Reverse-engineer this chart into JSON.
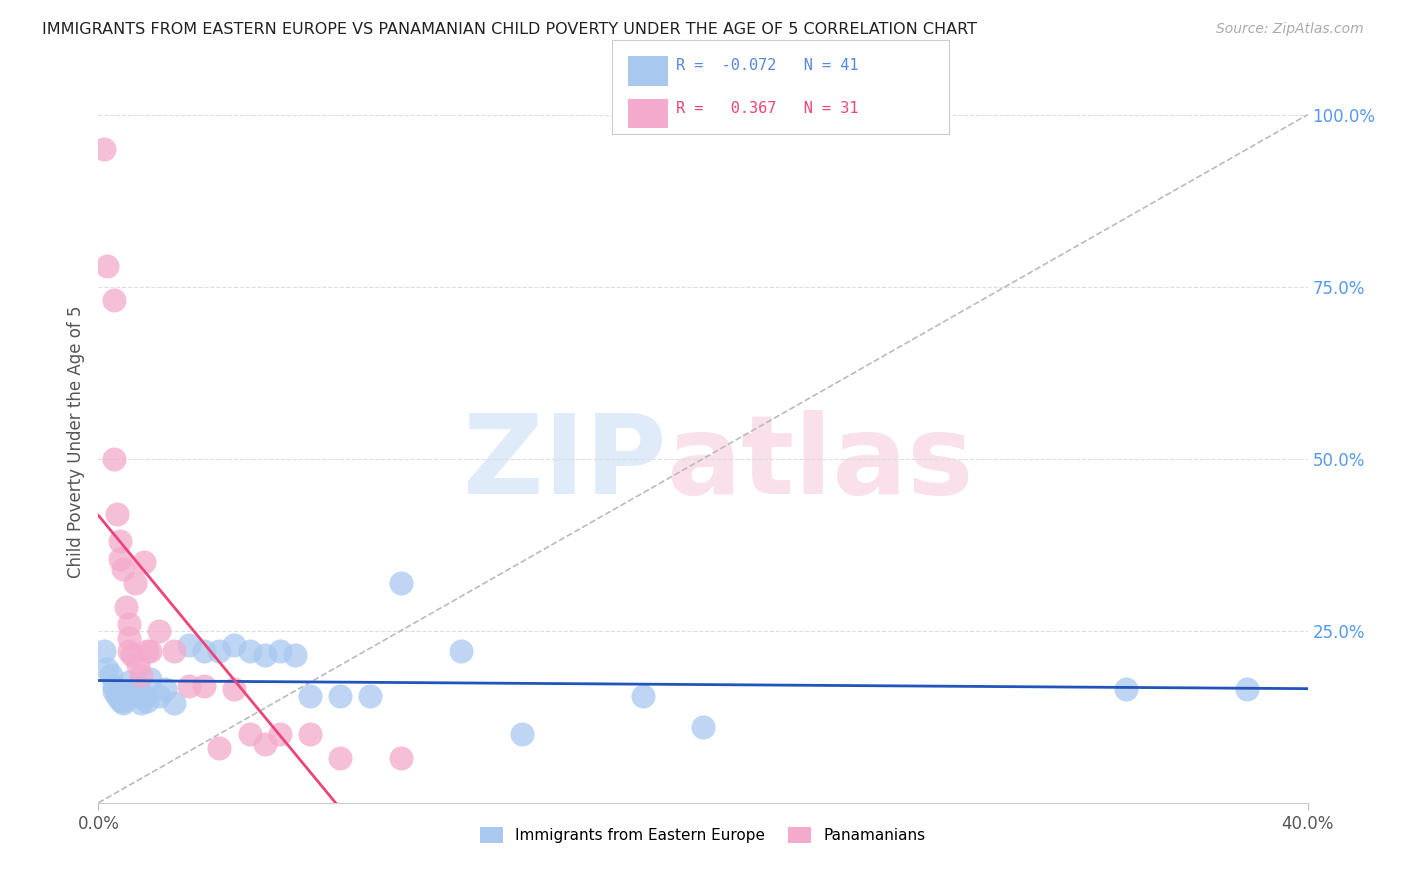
{
  "title": "IMMIGRANTS FROM EASTERN EUROPE VS PANAMANIAN CHILD POVERTY UNDER THE AGE OF 5 CORRELATION CHART",
  "source": "Source: ZipAtlas.com",
  "ylabel": "Child Poverty Under the Age of 5",
  "legend_label1": "Immigrants from Eastern Europe",
  "legend_label2": "Panamanians",
  "R1": -0.072,
  "N1": 41,
  "R2": 0.367,
  "N2": 31,
  "background_color": "#ffffff",
  "blue_color": "#A8C8F0",
  "pink_color": "#F4AACC",
  "blue_line_color": "#2255BB",
  "pink_line_color": "#EE4477",
  "grid_color": "#dddddd",
  "title_color": "#222222",
  "blue_scatter": [
    [
      0.2,
      0.22
    ],
    [
      0.3,
      0.195
    ],
    [
      0.4,
      0.185
    ],
    [
      0.5,
      0.17
    ],
    [
      0.5,
      0.162
    ],
    [
      0.6,
      0.155
    ],
    [
      0.7,
      0.155
    ],
    [
      0.7,
      0.15
    ],
    [
      0.8,
      0.148
    ],
    [
      0.8,
      0.145
    ],
    [
      0.9,
      0.155
    ],
    [
      1.0,
      0.16
    ],
    [
      1.0,
      0.175
    ],
    [
      1.1,
      0.155
    ],
    [
      1.2,
      0.155
    ],
    [
      1.3,
      0.17
    ],
    [
      1.4,
      0.145
    ],
    [
      1.5,
      0.155
    ],
    [
      1.6,
      0.148
    ],
    [
      1.7,
      0.18
    ],
    [
      2.0,
      0.155
    ],
    [
      2.2,
      0.165
    ],
    [
      2.5,
      0.145
    ],
    [
      3.0,
      0.23
    ],
    [
      3.5,
      0.22
    ],
    [
      4.0,
      0.22
    ],
    [
      4.5,
      0.23
    ],
    [
      5.0,
      0.22
    ],
    [
      5.5,
      0.215
    ],
    [
      6.0,
      0.22
    ],
    [
      6.5,
      0.215
    ],
    [
      7.0,
      0.155
    ],
    [
      8.0,
      0.155
    ],
    [
      9.0,
      0.155
    ],
    [
      10.0,
      0.32
    ],
    [
      12.0,
      0.22
    ],
    [
      14.0,
      0.1
    ],
    [
      18.0,
      0.155
    ],
    [
      20.0,
      0.11
    ],
    [
      34.0,
      0.165
    ],
    [
      38.0,
      0.165
    ]
  ],
  "pink_scatter": [
    [
      0.2,
      0.95
    ],
    [
      0.3,
      0.78
    ],
    [
      0.5,
      0.73
    ],
    [
      0.5,
      0.5
    ],
    [
      0.6,
      0.42
    ],
    [
      0.7,
      0.38
    ],
    [
      0.7,
      0.355
    ],
    [
      0.8,
      0.34
    ],
    [
      0.9,
      0.285
    ],
    [
      1.0,
      0.26
    ],
    [
      1.0,
      0.24
    ],
    [
      1.0,
      0.22
    ],
    [
      1.1,
      0.215
    ],
    [
      1.2,
      0.32
    ],
    [
      1.3,
      0.2
    ],
    [
      1.4,
      0.185
    ],
    [
      1.5,
      0.35
    ],
    [
      1.6,
      0.22
    ],
    [
      1.7,
      0.22
    ],
    [
      2.0,
      0.25
    ],
    [
      2.5,
      0.22
    ],
    [
      3.0,
      0.17
    ],
    [
      3.5,
      0.17
    ],
    [
      4.0,
      0.08
    ],
    [
      4.5,
      0.165
    ],
    [
      5.0,
      0.1
    ],
    [
      5.5,
      0.085
    ],
    [
      6.0,
      0.1
    ],
    [
      7.0,
      0.1
    ],
    [
      8.0,
      0.065
    ],
    [
      10.0,
      0.065
    ]
  ],
  "xlim": [
    0.0,
    40.0
  ],
  "ylim": [
    0.0,
    1.05
  ],
  "ytick_values": [
    0.25,
    0.5,
    0.75,
    1.0
  ],
  "ytick_labels": [
    "25.0%",
    "50.0%",
    "75.0%",
    "100.0%"
  ],
  "xtick_positions": [
    0.0,
    40.0
  ],
  "xtick_labels": [
    "0.0%",
    "40.0%"
  ]
}
